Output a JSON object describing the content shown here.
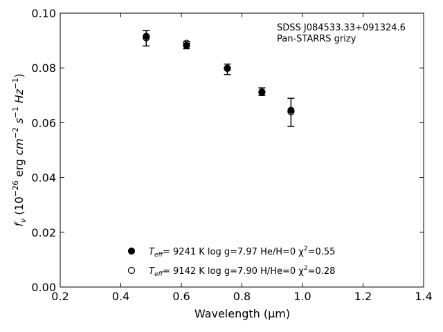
{
  "chart_data": {
    "type": "scatter",
    "annotation": {
      "line1": "SDSS J084533.33+091324.6",
      "line2": "Pan-STARRS grizy"
    },
    "xlabel": "Wavelength (μm)",
    "ylabel": "f_ν (10^-26 erg cm^-2 s^-1 Hz^-1)",
    "xlim": [
      0.2,
      1.4
    ],
    "ylim": [
      0.0,
      0.1
    ],
    "xticks": [
      "0.2",
      "0.4",
      "0.6",
      "0.8",
      "1.0",
      "1.2",
      "1.4"
    ],
    "yticks": [
      "0.00",
      "0.02",
      "0.04",
      "0.06",
      "0.08",
      "0.10"
    ],
    "grid": false,
    "legend_position": "lower-center",
    "observed": {
      "x": [
        0.484,
        0.617,
        0.752,
        0.866,
        0.962
      ],
      "y": [
        0.0908,
        0.0883,
        0.0795,
        0.0713,
        0.0638
      ],
      "yerr": [
        0.0028,
        0.0013,
        0.0019,
        0.0014,
        0.0051
      ]
    },
    "series": [
      {
        "name": "Teff= 9241 K log g=7.97 He/H=0 χ²=0.55",
        "marker": "filled-circle",
        "x": [
          0.484,
          0.617,
          0.752,
          0.866,
          0.962
        ],
        "y": [
          0.0915,
          0.0882,
          0.0798,
          0.0711,
          0.0645
        ]
      },
      {
        "name": "Teff= 9142 K log g=7.90 H/He=0 χ²=0.28",
        "marker": "open-circle",
        "x": [
          0.484,
          0.617,
          0.752,
          0.866,
          0.962
        ],
        "y": [
          0.091,
          0.089,
          0.0799,
          0.0712,
          0.064
        ]
      }
    ],
    "legend": [
      {
        "marker": "filled-circle",
        "teff_label": "T",
        "teff_sub": "eff",
        "text": "=  9241 K  log g=7.97  He/H=0  χ",
        "chi_sup": "2",
        "chi_val": "=0.55"
      },
      {
        "marker": "open-circle",
        "teff_label": "T",
        "teff_sub": "eff",
        "text": "=  9142 K  log g=7.90  H/He=0  χ",
        "chi_sup": "2",
        "chi_val": "=0.28"
      }
    ],
    "colors": {
      "marker": "#000000",
      "axes": "#000000",
      "background": "#ffffff"
    }
  }
}
